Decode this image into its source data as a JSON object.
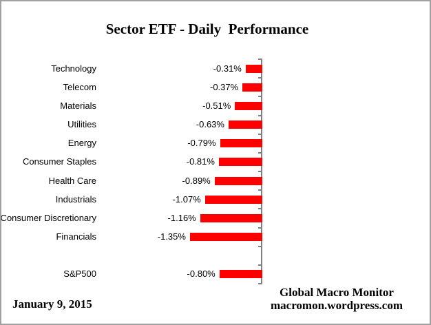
{
  "title": "Sector ETF - Daily  Performance",
  "footer": {
    "date": "January 9,  2015",
    "attribution_line1": "Global Macro Monitor",
    "attribution_line2": "macromon.wordpress.com"
  },
  "chart_data": {
    "type": "bar",
    "orientation": "horizontal",
    "title": "Sector ETF - Daily  Performance",
    "xlabel": "",
    "ylabel": "",
    "unit": "percent",
    "categories": [
      "Technology",
      "Telecom",
      "Materials",
      "Utilities",
      "Energy",
      "Consumer Staples",
      "Health Care",
      "Industrials",
      "Consumer Discretionary",
      "Financials",
      "",
      "S&P500"
    ],
    "values": [
      -0.31,
      -0.37,
      -0.51,
      -0.63,
      -0.79,
      -0.81,
      -0.89,
      -1.07,
      -1.16,
      -1.35,
      null,
      -0.8
    ],
    "value_labels": [
      "-0.31%",
      "-0.37%",
      "-0.51%",
      "-0.63%",
      "-0.79%",
      "-0.81%",
      "-0.89%",
      "-1.07%",
      "-1.16%",
      "-1.35%",
      "",
      "-0.80%"
    ],
    "value_labels_position": "outside-end",
    "bar_color": "#ff0000",
    "axis_color": "#808080",
    "text_color": "#000000",
    "gridlines": false,
    "legend": "none",
    "zero_baseline": "right-of-bars"
  }
}
